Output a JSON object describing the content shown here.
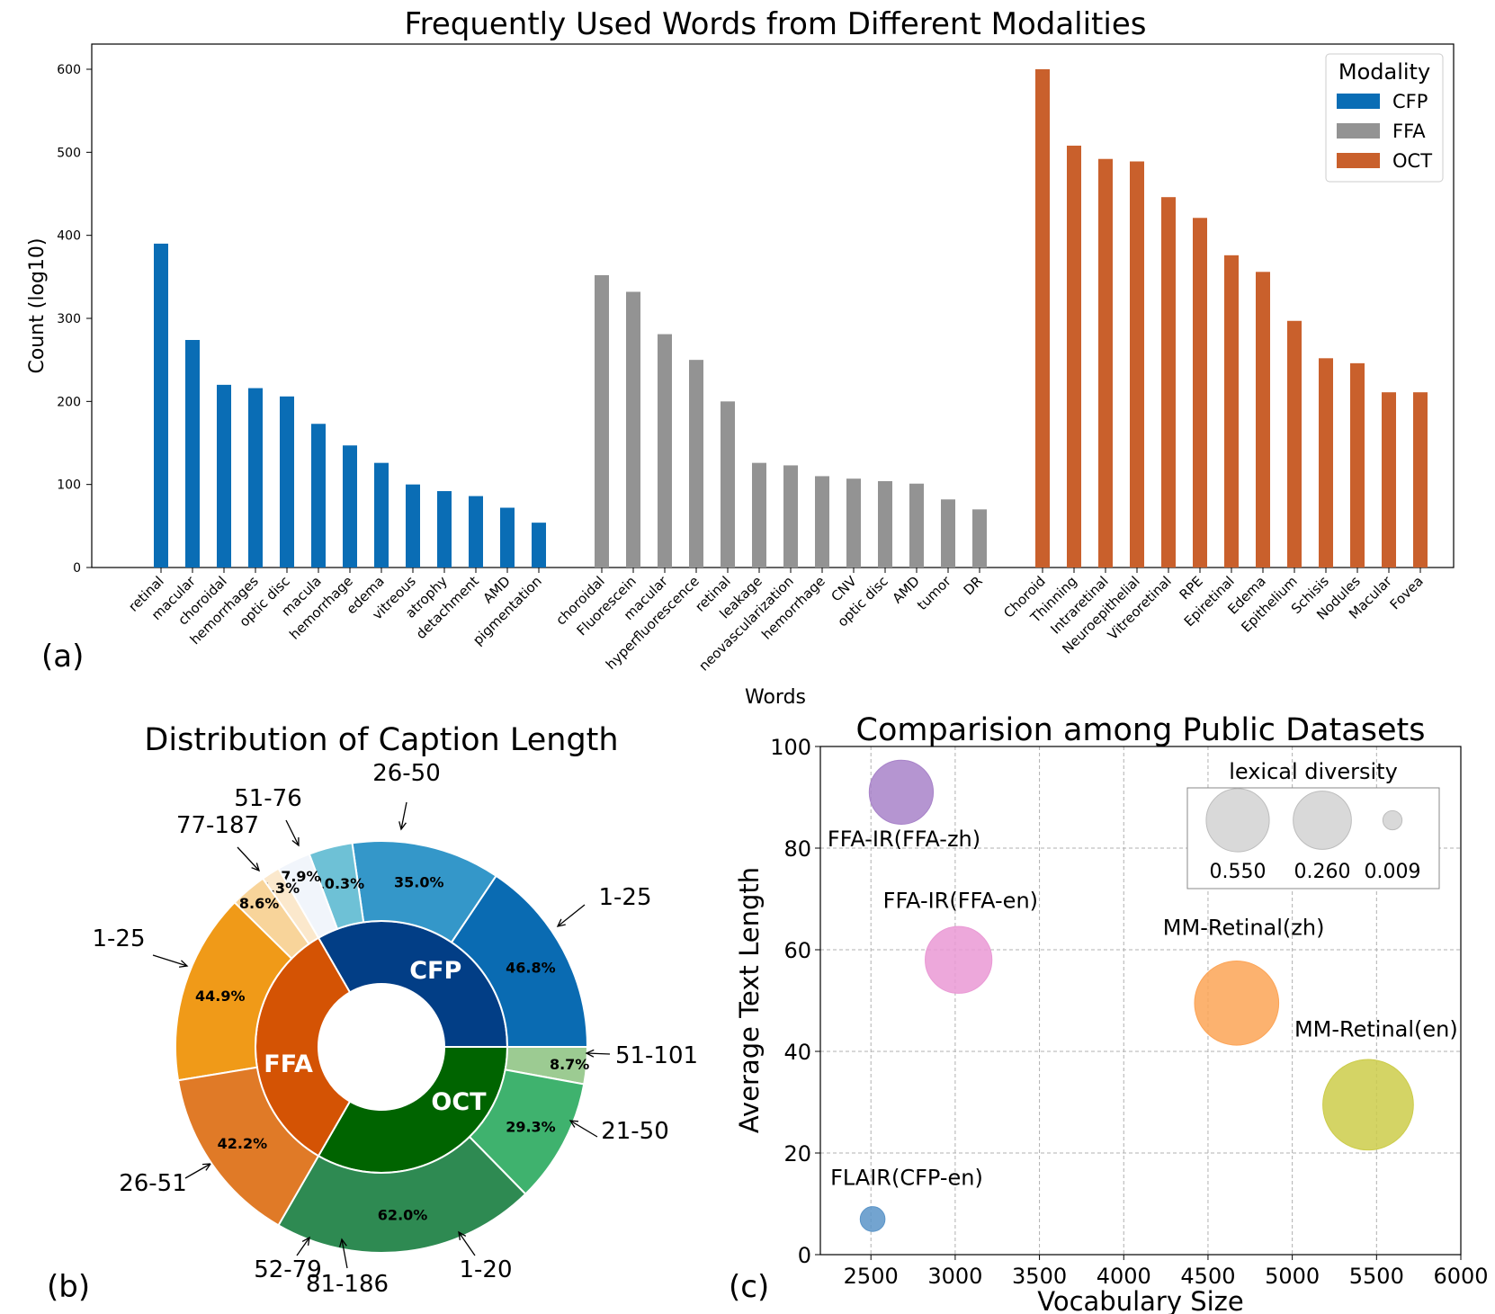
{
  "colors": {
    "CFP": "#0a6db5",
    "FFA": "#939393",
    "OCT": "#c9602c"
  },
  "chart_data": [
    {
      "type": "bar",
      "panel_label": "(a)",
      "title": "Frequently Used Words from Different Modalities",
      "xlabel": "Words",
      "ylabel": "Count (log10)",
      "ylim": [
        0,
        600
      ],
      "yticks": [
        0,
        100,
        200,
        300,
        400,
        500,
        600
      ],
      "legend_title": "Modality",
      "legend_position": "top-right",
      "series": [
        {
          "name": "CFP",
          "categories": [
            "retinal",
            "macular",
            "choroidal",
            "hemorrhages",
            "optic disc",
            "macula",
            "hemorrhage",
            "edema",
            "vitreous",
            "atrophy",
            "detachment",
            "AMD",
            "pigmentation"
          ],
          "values": [
            390,
            274,
            220,
            216,
            206,
            173,
            147,
            126,
            100,
            92,
            86,
            72,
            54
          ]
        },
        {
          "name": "FFA",
          "categories": [
            "choroidal",
            "Fluorescein",
            "macular",
            "hyperfluorescence",
            "retinal",
            "leakage",
            "neovascularization",
            "hemorrhage",
            "CNV",
            "optic disc",
            "AMD",
            "tumor",
            "DR"
          ],
          "values": [
            352,
            332,
            281,
            250,
            200,
            126,
            123,
            110,
            107,
            104,
            101,
            82,
            70
          ]
        },
        {
          "name": "OCT",
          "categories": [
            "Choroid",
            "Thinning",
            "Intraretinal",
            "Neuroepithelial",
            "Vitreoretinal",
            "RPE",
            "Epiretinal",
            "Edema",
            "Epithelium",
            "Schisis",
            "Nodules",
            "Macular",
            "Fovea"
          ],
          "values": [
            600,
            508,
            492,
            489,
            446,
            421,
            376,
            356,
            297,
            252,
            246,
            211,
            211
          ]
        }
      ]
    },
    {
      "type": "pie",
      "panel_label": "(b)",
      "title": "Distribution of Caption Length",
      "inner": [
        {
          "label": "CFP",
          "value": 1,
          "color": "#023e86"
        },
        {
          "label": "OCT",
          "value": 1,
          "color": "#006400"
        },
        {
          "label": "FFA",
          "value": 1,
          "color": "#d45304"
        }
      ],
      "outer": [
        {
          "group": "CFP",
          "range": "1-25",
          "pct": 46.8,
          "pct_label": "46.8%",
          "color": "#0a6bb2"
        },
        {
          "group": "CFP",
          "range": "26-50",
          "pct": 35.0,
          "pct_label": "35.0%",
          "color": "#3497c9"
        },
        {
          "group": "CFP",
          "range": "51-76",
          "pct": 10.3,
          "pct_label": "10.3%",
          "color": "#6ec1d6"
        },
        {
          "group": "CFP",
          "range": "77-187",
          "pct": 7.9,
          "pct_label": "7.9%",
          "color": "#f1f5fb"
        },
        {
          "group": "OCT",
          "range": "51-101",
          "pct": 8.7,
          "pct_label": "8.7%",
          "color": "#9ccb92"
        },
        {
          "group": "OCT",
          "range": "21-50",
          "pct": 29.3,
          "pct_label": "29.3%",
          "color": "#3fb26e"
        },
        {
          "group": "OCT",
          "range": "1-20",
          "pct": 62.0,
          "pct_label": "62.0%",
          "color": "#2e8a52"
        },
        {
          "group": "FFA",
          "range": "81-186",
          "pct": 4.3,
          "pct_label": "4.3%",
          "color": "#fbe8cc"
        },
        {
          "group": "FFA",
          "range": "52-79",
          "pct": 8.6,
          "pct_label": "8.6%",
          "color": "#f8d49a"
        },
        {
          "group": "FFA",
          "range": "26-51",
          "pct": 44.9,
          "pct_label": "44.9%",
          "color": "#f09a18"
        },
        {
          "group": "FFA",
          "range": "1-25",
          "pct": 42.2,
          "pct_label": "42.2%",
          "color": "#e07a27"
        }
      ]
    },
    {
      "type": "scatter",
      "panel_label": "(c)",
      "title": "Comparision among Public Datasets",
      "xlabel": "Vocabulary Size",
      "ylabel": "Average Text Length",
      "xlim": [
        2200,
        6000
      ],
      "ylim": [
        0,
        100
      ],
      "xticks": [
        2500,
        3000,
        3500,
        4000,
        4500,
        5000,
        5500,
        6000
      ],
      "yticks": [
        0,
        20,
        40,
        60,
        80,
        100
      ],
      "grid": true,
      "legend_title": "lexical diversity",
      "legend_position": "top-right",
      "legend_sizes": [
        {
          "value": 0.55,
          "label": "0.550"
        },
        {
          "value": 0.26,
          "label": "0.260"
        },
        {
          "value": 0.009,
          "label": "0.009"
        }
      ],
      "points": [
        {
          "name": "FFA-IR(FFA-zh)",
          "x": 2680,
          "y": 91,
          "size": 0.29,
          "color": "#a883c9"
        },
        {
          "name": "FFA-IR(FFA-en)",
          "x": 3020,
          "y": 58,
          "size": 0.32,
          "color": "#ea99d5"
        },
        {
          "name": "MM-Retinal(zh)",
          "x": 4670,
          "y": 49.5,
          "size": 0.55,
          "color": "#fca456"
        },
        {
          "name": "MM-Retinal(en)",
          "x": 5450,
          "y": 29.5,
          "size": 0.65,
          "color": "#cccc4a"
        },
        {
          "name": "FLAIR(CFP-en)",
          "x": 2510,
          "y": 7,
          "size": 0.02,
          "color": "#5a94c8"
        }
      ]
    }
  ]
}
